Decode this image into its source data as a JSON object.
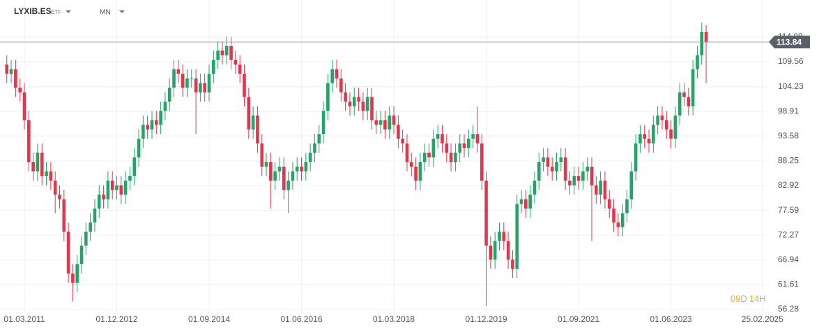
{
  "header": {
    "symbol": "LYXIB.ES",
    "instrument_type": "ETF",
    "timeframe": "MN"
  },
  "countdown": {
    "days": "09",
    "days_unit": "D",
    "hours": "14",
    "hours_unit": "H"
  },
  "chart_data": {
    "type": "candlestick",
    "x": [
      "01.11.2010",
      "01.12.2010",
      "01.01.2011",
      "01.02.2011",
      "01.03.2011",
      "01.04.2011",
      "01.05.2011",
      "01.06.2011",
      "01.07.2011",
      "01.08.2011",
      "01.09.2011",
      "01.10.2011",
      "01.11.2011",
      "01.12.2011",
      "01.01.2012",
      "01.02.2012",
      "01.03.2012",
      "01.04.2012",
      "01.05.2012",
      "01.06.2012",
      "01.07.2012",
      "01.08.2012",
      "01.09.2012",
      "01.10.2012",
      "01.11.2012",
      "01.12.2012",
      "01.01.2013",
      "01.02.2013",
      "01.03.2013",
      "01.04.2013",
      "01.05.2013",
      "01.06.2013",
      "01.07.2013",
      "01.08.2013",
      "01.09.2013",
      "01.10.2013",
      "01.11.2013",
      "01.12.2013",
      "01.01.2014",
      "01.02.2014",
      "01.03.2014",
      "01.04.2014",
      "01.05.2014",
      "01.06.2014",
      "01.07.2014",
      "01.08.2014",
      "01.09.2014",
      "01.10.2014",
      "01.11.2014",
      "01.12.2014",
      "01.01.2015",
      "01.02.2015",
      "01.03.2015",
      "01.04.2015",
      "01.05.2015",
      "01.06.2015",
      "01.07.2015",
      "01.08.2015",
      "01.09.2015",
      "01.10.2015",
      "01.11.2015",
      "01.12.2015",
      "01.01.2016",
      "01.02.2016",
      "01.03.2016",
      "01.04.2016",
      "01.05.2016",
      "01.06.2016",
      "01.07.2016",
      "01.08.2016",
      "01.09.2016",
      "01.10.2016",
      "01.11.2016",
      "01.12.2016",
      "01.01.2017",
      "01.02.2017",
      "01.03.2017",
      "01.04.2017",
      "01.05.2017",
      "01.06.2017",
      "01.07.2017",
      "01.08.2017",
      "01.09.2017",
      "01.10.2017",
      "01.11.2017",
      "01.12.2017",
      "01.01.2018",
      "01.02.2018",
      "01.03.2018",
      "01.04.2018",
      "01.05.2018",
      "01.06.2018",
      "01.07.2018",
      "01.08.2018",
      "01.09.2018",
      "01.10.2018",
      "01.11.2018",
      "01.12.2018",
      "01.01.2019",
      "01.02.2019",
      "01.03.2019",
      "01.04.2019",
      "01.05.2019",
      "01.06.2019",
      "01.07.2019",
      "01.08.2019",
      "01.09.2019",
      "01.10.2019",
      "01.11.2019",
      "01.12.2019",
      "01.01.2020",
      "01.02.2020",
      "01.03.2020",
      "01.04.2020",
      "01.05.2020",
      "01.06.2020",
      "01.07.2020",
      "01.08.2020",
      "01.09.2020",
      "01.10.2020",
      "01.11.2020",
      "01.12.2020",
      "01.01.2021",
      "01.02.2021",
      "01.03.2021",
      "01.04.2021",
      "01.05.2021",
      "01.06.2021",
      "01.07.2021",
      "01.08.2021",
      "01.09.2021",
      "01.10.2021",
      "01.11.2021",
      "01.12.2021",
      "01.01.2022",
      "01.02.2022",
      "01.03.2022",
      "01.04.2022",
      "01.05.2022",
      "01.06.2022",
      "01.07.2022",
      "01.08.2022",
      "01.09.2022",
      "01.10.2022",
      "01.11.2022",
      "01.12.2022",
      "01.01.2023",
      "01.02.2023",
      "01.03.2023",
      "01.04.2023",
      "01.05.2023",
      "01.06.2023",
      "01.07.2023",
      "01.08.2023",
      "01.09.2023",
      "01.10.2023",
      "01.11.2023",
      "01.12.2023",
      "01.01.2024",
      "01.02.2024"
    ],
    "open": [
      109,
      107,
      108,
      104,
      103,
      97,
      88,
      86,
      90,
      85,
      86,
      84,
      81,
      80,
      73,
      64,
      62,
      66,
      70,
      73,
      75,
      78,
      81,
      80,
      84,
      82,
      83,
      81,
      84,
      85,
      89,
      93,
      96,
      95,
      97,
      96,
      99,
      101,
      104,
      108,
      107,
      104,
      106,
      106,
      103,
      105,
      103,
      107,
      110,
      112,
      111,
      113,
      110,
      109,
      107,
      102,
      95,
      98,
      92,
      87,
      88,
      84,
      86,
      87,
      82,
      84,
      86,
      87,
      86,
      88,
      90,
      92,
      94,
      99,
      105,
      108,
      106,
      103,
      101,
      100,
      102,
      101,
      99,
      102,
      97,
      96,
      97,
      95,
      98,
      96,
      93,
      92,
      88,
      87,
      84,
      88,
      90,
      89,
      93,
      94,
      92,
      90,
      88,
      90,
      92,
      91,
      93,
      94,
      92,
      84,
      70,
      67,
      71,
      73,
      71,
      67,
      65,
      79,
      80,
      78,
      81,
      84,
      88,
      89,
      87,
      86,
      88,
      89,
      84,
      83,
      85,
      84,
      86,
      87,
      83,
      81,
      84,
      80,
      78,
      75,
      74,
      77,
      80,
      86,
      92,
      94,
      93,
      92,
      96,
      98,
      97,
      95,
      93,
      98,
      103,
      102,
      100,
      108,
      111,
      116
    ],
    "high": [
      111,
      110,
      110,
      106,
      105,
      99,
      90,
      92,
      92,
      88,
      88,
      86,
      83,
      82,
      75,
      66,
      68,
      72,
      75,
      77,
      80,
      83,
      83,
      86,
      86,
      85,
      85,
      86,
      87,
      91,
      95,
      98,
      98,
      99,
      99,
      101,
      103,
      106,
      110,
      110,
      109,
      108,
      108,
      108,
      107,
      107,
      109,
      112,
      114,
      114,
      115,
      115,
      112,
      111,
      109,
      104,
      100,
      100,
      94,
      90,
      90,
      88,
      89,
      89,
      86,
      88,
      89,
      89,
      90,
      92,
      94,
      96,
      101,
      107,
      110,
      110,
      108,
      105,
      103,
      104,
      104,
      103,
      104,
      104,
      99,
      99,
      99,
      100,
      100,
      98,
      95,
      94,
      90,
      89,
      90,
      92,
      92,
      95,
      96,
      96,
      94,
      92,
      92,
      94,
      94,
      95,
      96,
      100,
      94,
      86,
      72,
      73,
      75,
      75,
      73,
      69,
      81,
      82,
      82,
      83,
      86,
      90,
      91,
      91,
      89,
      90,
      91,
      91,
      86,
      87,
      87,
      88,
      89,
      89,
      85,
      86,
      86,
      82,
      80,
      77,
      79,
      82,
      88,
      94,
      96,
      96,
      95,
      98,
      100,
      100,
      99,
      97,
      100,
      105,
      105,
      104,
      110,
      113,
      118,
      117.5
    ],
    "low": [
      105,
      105,
      102,
      101,
      95,
      86,
      84,
      84,
      83,
      83,
      82,
      77,
      78,
      71,
      62,
      58,
      60,
      64,
      68,
      71,
      73,
      76,
      78,
      78,
      80,
      80,
      79,
      79,
      82,
      83,
      87,
      91,
      93,
      93,
      94,
      94,
      97,
      99,
      102,
      105,
      102,
      102,
      104,
      94,
      101,
      101,
      101,
      105,
      108,
      109,
      109,
      108,
      107,
      105,
      100,
      93,
      93,
      90,
      85,
      85,
      78,
      82,
      84,
      80,
      77,
      82,
      84,
      84,
      84,
      86,
      88,
      90,
      92,
      97,
      103,
      104,
      101,
      99,
      98,
      98,
      99,
      97,
      97,
      95,
      94,
      94,
      93,
      93,
      94,
      91,
      90,
      86,
      85,
      82,
      82,
      86,
      87,
      87,
      91,
      90,
      88,
      86,
      86,
      88,
      89,
      89,
      91,
      90,
      82,
      57,
      65,
      65,
      69,
      69,
      65,
      63,
      63,
      77,
      76,
      76,
      79,
      82,
      86,
      85,
      84,
      84,
      86,
      82,
      81,
      81,
      82,
      82,
      84,
      71,
      79,
      79,
      78,
      76,
      73,
      72,
      72,
      75,
      78,
      84,
      90,
      91,
      90,
      90,
      94,
      95,
      93,
      91,
      91,
      96,
      100,
      98,
      98,
      106,
      109,
      105
    ],
    "close": [
      107,
      108,
      104,
      103,
      97,
      88,
      86,
      90,
      85,
      86,
      84,
      81,
      80,
      73,
      64,
      62,
      66,
      70,
      73,
      75,
      78,
      81,
      80,
      84,
      82,
      83,
      81,
      84,
      85,
      89,
      93,
      96,
      95,
      97,
      96,
      99,
      101,
      104,
      108,
      107,
      104,
      106,
      106,
      103,
      105,
      103,
      107,
      110,
      112,
      111,
      113,
      110,
      109,
      107,
      102,
      95,
      98,
      92,
      87,
      88,
      84,
      86,
      87,
      82,
      84,
      86,
      87,
      86,
      88,
      90,
      92,
      94,
      99,
      105,
      108,
      106,
      103,
      101,
      100,
      102,
      101,
      99,
      102,
      97,
      96,
      97,
      95,
      98,
      96,
      93,
      92,
      88,
      87,
      84,
      88,
      90,
      89,
      93,
      94,
      92,
      90,
      88,
      90,
      92,
      91,
      93,
      94,
      92,
      84,
      70,
      67,
      71,
      73,
      71,
      67,
      65,
      79,
      80,
      78,
      81,
      84,
      88,
      89,
      87,
      86,
      88,
      89,
      84,
      83,
      85,
      84,
      86,
      87,
      83,
      81,
      84,
      80,
      78,
      75,
      74,
      77,
      80,
      86,
      92,
      94,
      93,
      92,
      96,
      98,
      97,
      95,
      93,
      98,
      103,
      102,
      100,
      108,
      111,
      116,
      113.84
    ],
    "up_color": "#22a566",
    "down_color": "#e8334a",
    "xlim": [
      "01.10.2010",
      "01.04.2025"
    ],
    "xticks": [
      "01.03.2011",
      "01.12.2012",
      "01.09.2014",
      "01.06.2016",
      "01.03.2018",
      "01.12.2019",
      "01.09.2021",
      "01.06.2023",
      "25.02.2025"
    ],
    "ylim": [
      55.53,
      122.88
    ],
    "yticks": [
      56.28,
      61.61,
      66.94,
      72.27,
      77.59,
      82.92,
      88.25,
      93.58,
      98.91,
      104.23,
      109.56,
      114.89
    ],
    "grid": true,
    "last_price": 113.84
  }
}
